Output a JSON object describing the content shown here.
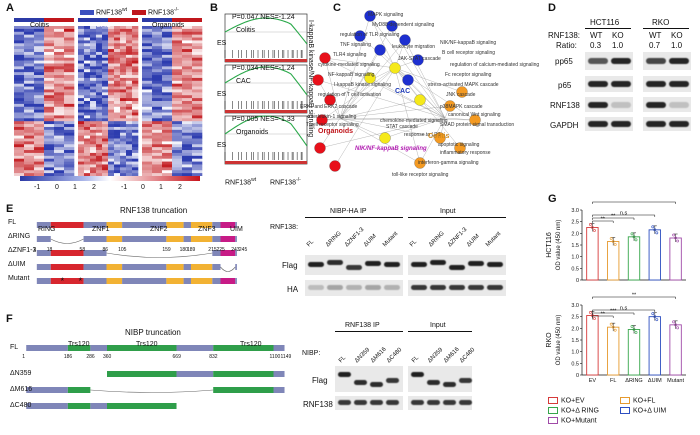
{
  "panels": {
    "A": {
      "label": "A",
      "legend": [
        {
          "text": "RNF138",
          "sup": "wt",
          "color": "#3b4fbf"
        },
        {
          "text": "RNF138",
          "sup": "-/-",
          "color": "#c0161c"
        }
      ],
      "groups": [
        "Colitis",
        "CAC",
        "Organoids"
      ],
      "scale_ticks": [
        "-1",
        "0",
        "1",
        "2"
      ]
    },
    "B": {
      "label": "B",
      "plots": [
        {
          "stat": "P=0.047 NES=-1.24",
          "name": "Colitis"
        },
        {
          "stat": "P=0.034 NES=-1.24",
          "name": "CAC"
        },
        {
          "stat": "P=0.005 NES=-1.33",
          "name": "Organoids"
        }
      ],
      "ylabel": "ES",
      "side_label": "I-kappaB kinase/NF-kappaB signaling",
      "xlabel_left": "RNF138",
      "xlabel_left_sup": "wt",
      "xlabel_right": "RNF138",
      "xlabel_right_sup": "-/-"
    },
    "C": {
      "label": "C",
      "hubs": [
        "CAC",
        "Organoids",
        "Colitis"
      ],
      "highlight": "NIK/NF-kappaB signaling",
      "terms": [
        "MAPK signaling",
        "MyD88-dependent signaling",
        "regulation of TLR signaling",
        "TNF signaling",
        "TLR4 signaling",
        "cytokine-mediated signaling",
        "NF-kappaB signaling",
        "I-kappaB kinase signaling",
        "regulation of T cell activation",
        "ERK1 and ERK2 cascade",
        "interleukin-1 signaling",
        "T cell receptor signaling",
        "NIK/NF-kappaB signaling",
        "B cell receptor signaling",
        "regulation of calcium-mediated signaling",
        "Fc receptor signaling",
        "stress-activated MAPK cascade",
        "JNK cascade",
        "p38MAPK cascade",
        "canonical Wnt signaling",
        "SMAD protein signal transduction",
        "apoptotic signaling",
        "inflammatory response",
        "interferon-gamma signaling",
        "toll-like receptor signaling",
        "response to LPS",
        "chemokine-mediated signaling",
        "STAT cascade",
        "JAK-STAT cascade",
        "leukocyte migration"
      ]
    },
    "D": {
      "label": "D",
      "cells": [
        "HCT116",
        "RKO"
      ],
      "lanes": [
        "WT",
        "KO",
        "WT",
        "KO"
      ],
      "rnf_label": "RNF138:",
      "ratio_label": "Ratio:",
      "ratios": [
        "0.3",
        "1.0",
        "0.7",
        "1.0"
      ],
      "blots": [
        "pp65",
        "p65",
        "RNF138",
        "GAPDH"
      ]
    },
    "E": {
      "label": "E",
      "title": "RNF138 truncation",
      "domains": [
        "RING",
        "ZNF1",
        "ZNF2",
        "ZNF3",
        "UIM"
      ],
      "positions": [
        "1",
        "18",
        "58",
        "86",
        "105",
        "159",
        "180",
        "189",
        "215",
        "225",
        "243",
        "245"
      ],
      "constructs": [
        "FL",
        "ΔRING",
        "ΔZNF1-3",
        "ΔUIM",
        "Mutant"
      ],
      "ip_title": "NIBP-HA IP",
      "input_title": "Input",
      "rnf_label": "RNF138:",
      "lanes": [
        "FL",
        "ΔRING",
        "ΔZNF1-3",
        "ΔUIM",
        "Mutant"
      ],
      "blots": [
        "Flag",
        "HA"
      ]
    },
    "F": {
      "label": "F",
      "title": "NIBP truncation",
      "domains": [
        "Trs120",
        "Trs120",
        "Trs120"
      ],
      "positions": [
        "1",
        "186",
        "286",
        "360",
        "669",
        "832",
        "1100",
        "1149"
      ],
      "constructs": [
        "FL",
        "ΔN359",
        "ΔM616",
        "ΔC480"
      ],
      "ip_title": "RNF138 IP",
      "input_title": "Input",
      "nibp_label": "NIBP:",
      "lanes": [
        "FL",
        "ΔN359",
        "ΔM616",
        "ΔC480"
      ],
      "blots": [
        "Flag",
        "RNF138"
      ]
    },
    "G": {
      "label": "G",
      "legend": [
        {
          "text": "KO+EV",
          "color": "#d63a3a"
        },
        {
          "text": "KO+FL",
          "color": "#e69a2e"
        },
        {
          "text": "KO+Δ RING",
          "color": "#36a64a"
        },
        {
          "text": "KO+Δ UIM",
          "color": "#2d4fc1"
        },
        {
          "text": "KO+Mutant",
          "color": "#a04aa8"
        }
      ]
    }
  },
  "chart_data": [
    {
      "type": "bar",
      "title": "HCT116",
      "ylabel": "OD value (450 nm)",
      "categories": [
        "EV",
        "FL",
        "ΔRING",
        "ΔUIM",
        "Mutant"
      ],
      "values": [
        2.25,
        1.65,
        1.85,
        2.15,
        1.8
      ],
      "ylim": [
        0,
        3
      ],
      "yticks": [
        "0",
        "0.5",
        "1.0",
        "1.5",
        "2.0",
        "2.5",
        "3.0"
      ],
      "colors": [
        "#d63a3a",
        "#e69a2e",
        "#36a64a",
        "#2d4fc1",
        "#a04aa8"
      ],
      "significance": [
        "**",
        "**",
        "n.s",
        "**"
      ]
    },
    {
      "type": "bar",
      "title": "RKO",
      "ylabel": "OD value (450 nm)",
      "categories": [
        "EV",
        "FL",
        "ΔRING",
        "ΔUIM",
        "Mutant"
      ],
      "values": [
        2.55,
        2.05,
        1.95,
        2.5,
        2.15
      ],
      "ylim": [
        0,
        3
      ],
      "yticks": [
        "0",
        "0.5",
        "1.0",
        "1.5",
        "2.0",
        "2.5",
        "3.0"
      ],
      "colors": [
        "#d63a3a",
        "#e69a2e",
        "#36a64a",
        "#2d4fc1",
        "#a04aa8"
      ],
      "significance": [
        "**",
        "***",
        "n.s",
        "**"
      ]
    }
  ]
}
